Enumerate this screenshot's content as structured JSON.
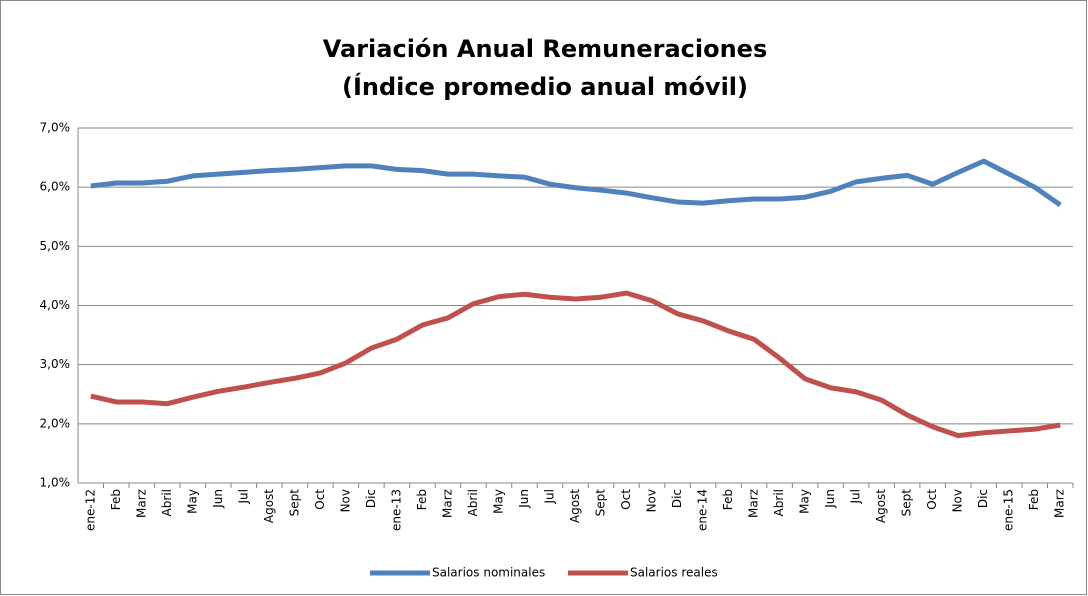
{
  "chart_data": {
    "type": "line",
    "title": [
      "Variación Anual Remuneraciones",
      "(Índice promedio anual móvil)"
    ],
    "categories": [
      "ene-12",
      "Feb",
      "Marz",
      "Abril",
      "May",
      "Jun",
      "Jul",
      "Agost",
      "Sept",
      "Oct",
      "Nov",
      "Dic",
      "ene-13",
      "Feb",
      "Marz",
      "Abril",
      "May",
      "Jun",
      "Jul",
      "Agost",
      "Sept",
      "Oct",
      "Nov",
      "Dic",
      "ene-14",
      "Feb",
      "Marz",
      "Abril",
      "May",
      "Jun",
      "Jul",
      "Agost",
      "Sept",
      "Oct",
      "Nov",
      "Dic",
      "ene-15",
      "Feb",
      "Marz"
    ],
    "series": [
      {
        "name": "Salarios nominales",
        "color": "#4f81bd",
        "values": [
          6.02,
          6.07,
          6.07,
          6.1,
          6.19,
          6.22,
          6.25,
          6.28,
          6.3,
          6.33,
          6.36,
          6.36,
          6.3,
          6.28,
          6.22,
          6.22,
          6.19,
          6.17,
          6.05,
          5.99,
          5.95,
          5.9,
          5.82,
          5.75,
          5.73,
          5.77,
          5.8,
          5.8,
          5.83,
          5.93,
          6.09,
          6.15,
          6.2,
          6.05,
          6.25,
          6.44,
          6.22,
          6.0,
          5.7
        ]
      },
      {
        "name": "Salarios reales",
        "color": "#c0504d",
        "values": [
          2.47,
          2.37,
          2.37,
          2.34,
          2.45,
          2.55,
          2.62,
          2.7,
          2.77,
          2.86,
          3.03,
          3.28,
          3.43,
          3.67,
          3.79,
          4.03,
          4.15,
          4.19,
          4.14,
          4.11,
          4.14,
          4.21,
          4.08,
          3.86,
          3.74,
          3.57,
          3.43,
          3.11,
          2.76,
          2.61,
          2.54,
          2.4,
          2.15,
          1.95,
          1.8,
          1.85,
          1.88,
          1.91,
          1.98
        ]
      }
    ],
    "ylim": [
      1,
      7
    ],
    "yticks": [
      {
        "value": 1,
        "label": "1,0%"
      },
      {
        "value": 2,
        "label": "2,0%"
      },
      {
        "value": 3,
        "label": "3,0%"
      },
      {
        "value": 4,
        "label": "4,0%"
      },
      {
        "value": 5,
        "label": "5,0%"
      },
      {
        "value": 6,
        "label": "6,0%"
      },
      {
        "value": 7,
        "label": "7,0%"
      }
    ],
    "grid": true,
    "legend": "bottom"
  }
}
